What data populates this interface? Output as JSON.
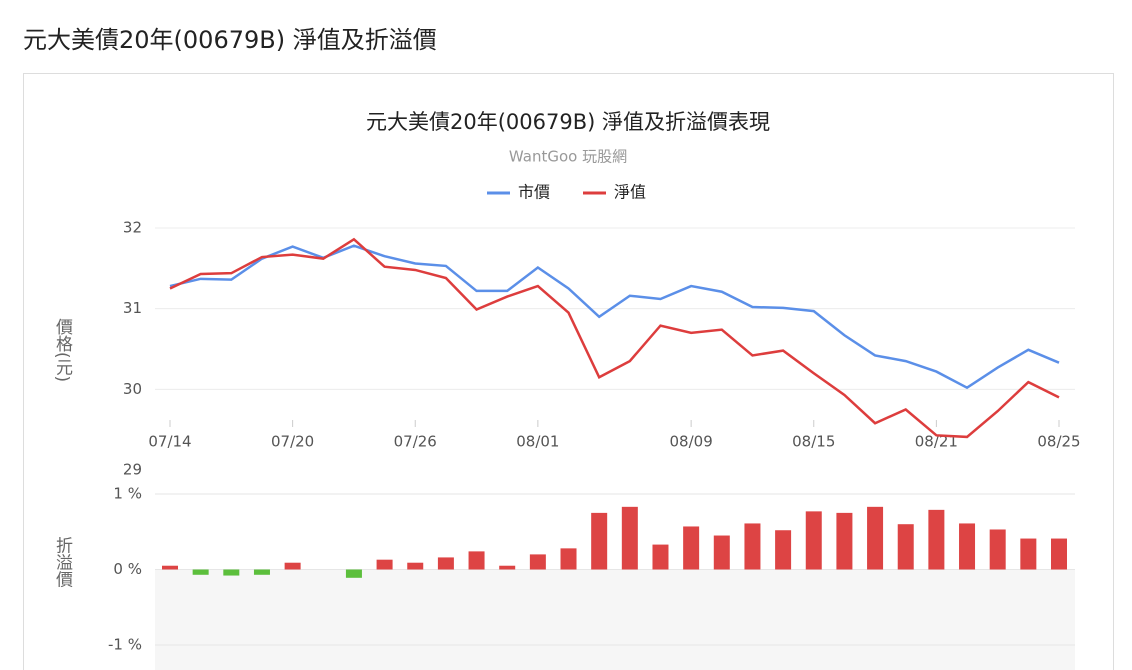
{
  "title": "元大美債20年(00679B) 淨值及折溢價",
  "chart_data": [
    {
      "type": "line",
      "title": "元大美債20年(00679B) 淨值及折溢價表現",
      "subtitle": "WantGoo 玩股網",
      "y_label": "價格(元)",
      "categories": [
        "07/14",
        null,
        null,
        null,
        "07/20",
        null,
        null,
        null,
        "07/26",
        null,
        null,
        null,
        "08/01",
        null,
        null,
        null,
        null,
        "08/09",
        null,
        null,
        null,
        "08/15",
        null,
        null,
        null,
        "08/21",
        null,
        null,
        null,
        "08/25"
      ],
      "series": [
        {
          "name": "市價",
          "color": "#5b8fe8",
          "values": [
            31.28,
            31.37,
            31.36,
            31.62,
            31.77,
            31.63,
            31.78,
            31.65,
            31.56,
            31.53,
            31.22,
            31.22,
            31.51,
            31.25,
            30.9,
            31.16,
            31.12,
            31.28,
            31.21,
            31.02,
            31.01,
            30.97,
            30.67,
            30.42,
            30.35,
            30.22,
            30.02,
            30.27,
            30.49,
            30.33
          ]
        },
        {
          "name": "淨值",
          "color": "#dd3d3d",
          "values": [
            31.25,
            31.43,
            31.44,
            31.64,
            31.67,
            31.62,
            31.86,
            31.52,
            31.48,
            31.38,
            30.99,
            31.15,
            31.28,
            30.95,
            30.15,
            30.35,
            30.79,
            30.7,
            30.74,
            30.42,
            30.48,
            30.2,
            29.93,
            29.58,
            29.75,
            29.43,
            29.41,
            29.73,
            30.09,
            29.9
          ]
        }
      ],
      "ylim": [
        29,
        32
      ],
      "yticks": [
        29,
        30,
        31,
        32
      ],
      "grid": true
    },
    {
      "type": "bar",
      "y_label": "折溢價",
      "values": [
        0.05,
        -0.07,
        -0.08,
        -0.07,
        0.09,
        0,
        -0.11,
        0.13,
        0.09,
        0.16,
        0.24,
        0.05,
        0.2,
        0.28,
        0.75,
        0.83,
        0.33,
        0.57,
        0.45,
        0.61,
        0.52,
        0.77,
        0.75,
        0.83,
        0.6,
        0.79,
        0.61,
        0.53,
        0.41,
        0.41
      ],
      "color": "#dd4444",
      "negative_color": "#5cbf3c",
      "ylim": [
        -1,
        1
      ],
      "yticks": [
        {
          "value": 1,
          "label": "1 %"
        },
        {
          "value": 0,
          "label": "0 %"
        },
        {
          "value": -1,
          "label": "-1 %"
        }
      ],
      "grid": true
    }
  ]
}
